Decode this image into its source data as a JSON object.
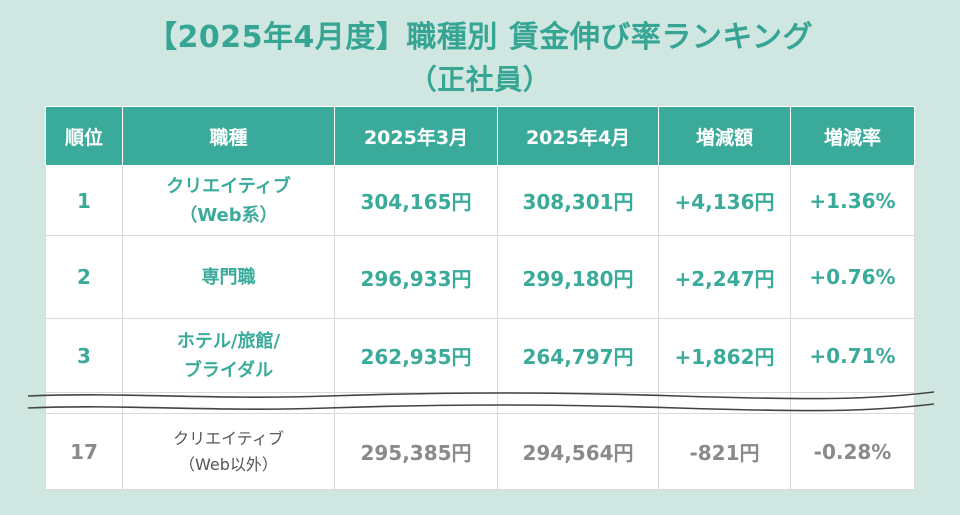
{
  "title": {
    "line1": "【2025年4月度】職種別 賃金伸び率ランキング",
    "line2": "（正社員）"
  },
  "table": {
    "headers": [
      "順位",
      "職種",
      "2025年3月",
      "2025年4月",
      "増減額",
      "増減率"
    ],
    "rows": [
      {
        "rank": "1",
        "job_line1": "クリエイティブ",
        "job_line2": "（Web系）",
        "mar": "304,165円",
        "apr": "308,301円",
        "diff": "+4,136円",
        "rate": "+1.36%"
      },
      {
        "rank": "2",
        "job_line1": "専門職",
        "job_line2": "",
        "mar": "296,933円",
        "apr": "299,180円",
        "diff": "+2,247円",
        "rate": "+0.76%"
      },
      {
        "rank": "3",
        "job_line1": "ホテル/旅館/",
        "job_line2": "ブライダル",
        "mar": "262,935円",
        "apr": "264,797円",
        "diff": "+1,862円",
        "rate": "+0.71%"
      },
      {
        "rank": "17",
        "job_line1": "クリエイティブ",
        "job_line2": "（Web以外）",
        "mar": "295,385円",
        "apr": "294,564円",
        "diff": "-821円",
        "rate": "-0.28%"
      }
    ]
  },
  "colors": {
    "accent": "#3aab9a",
    "background": "#cfe6e1",
    "muted": "#8a8a8a"
  }
}
